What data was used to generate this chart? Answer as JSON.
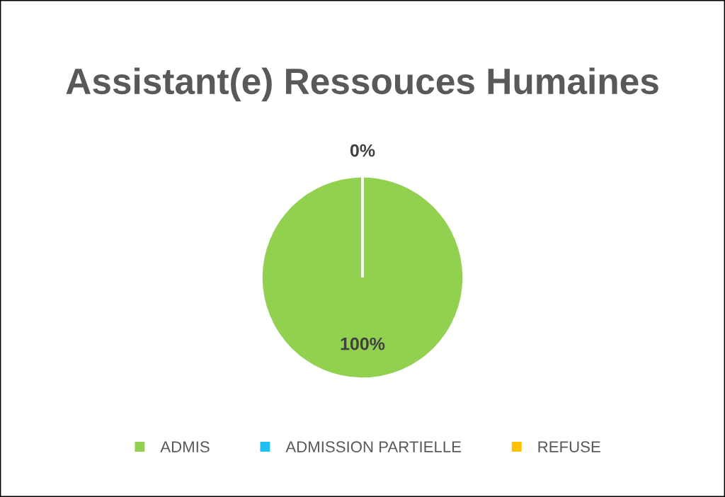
{
  "chart_data": {
    "type": "pie",
    "title": "Assistant(e) Ressouces Humaines",
    "categories": [
      "ADMIS",
      "ADMISSION PARTIELLE",
      "REFUSE"
    ],
    "values": [
      100,
      0,
      0
    ],
    "colors": [
      "#92d050",
      "#1fbff0",
      "#ffc000"
    ],
    "value_labels": [
      "100%",
      "0%",
      null
    ],
    "legend": "bottom"
  }
}
